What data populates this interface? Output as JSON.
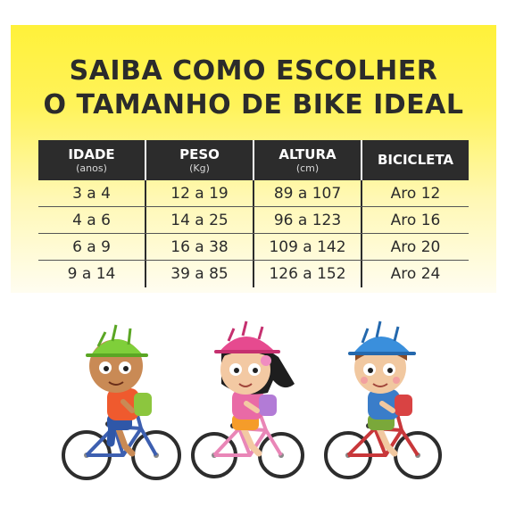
{
  "title": {
    "line1": "SAIBA COMO ESCOLHER",
    "line2": "O TAMANHO DE BIKE IDEAL"
  },
  "table": {
    "headers": [
      {
        "main": "IDADE",
        "sub": "(anos)"
      },
      {
        "main": "PESO",
        "sub": "(Kg)"
      },
      {
        "main": "ALTURA",
        "sub": "(cm)"
      },
      {
        "main": "BICICLETA",
        "sub": ""
      }
    ],
    "rows": [
      [
        "3 a 4",
        "12 a 19",
        "89 a 107",
        "Aro 12"
      ],
      [
        "4 a 6",
        "14 a 25",
        "96 a 123",
        "Aro 16"
      ],
      [
        "6 a 9",
        "16 a 38",
        "109 a 142",
        "Aro 20"
      ],
      [
        "9 a 14",
        "39 a 85",
        "126 a 152",
        "Aro 24"
      ]
    ]
  },
  "colors": {
    "banner_yellow": "#fff13a",
    "header_dark": "#2c2c2c",
    "helmet_green": "#7fcf3a",
    "helmet_pink": "#e64a8f",
    "helmet_blue": "#3a8fdc"
  },
  "illustrations": {
    "kid1": "boy-green-helmet-on-bike",
    "kid2": "girl-pink-helmet-on-bike",
    "kid3": "boy-blue-helmet-on-bike"
  }
}
